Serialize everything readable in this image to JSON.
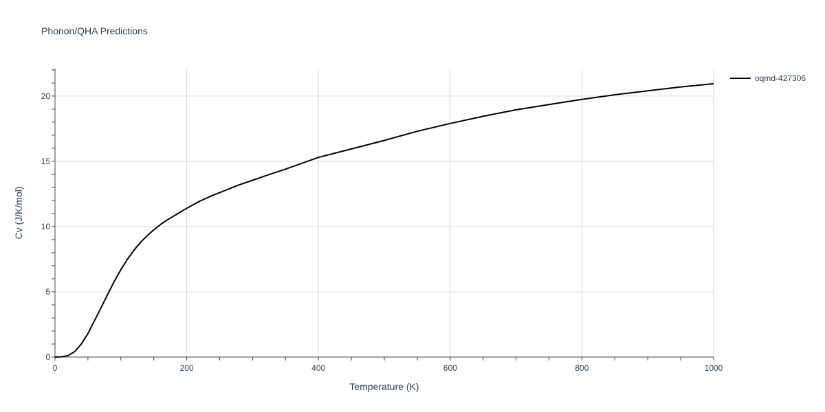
{
  "chart_data": {
    "type": "line",
    "title": "Phonon/QHA Predictions",
    "xlabel": "Temperature (K)",
    "ylabel": "Cv (J/K/mol)",
    "xlim": [
      0,
      1000
    ],
    "ylim": [
      0,
      22.1
    ],
    "x_ticks": [
      0,
      200,
      400,
      600,
      800,
      1000
    ],
    "y_ticks": [
      0,
      5,
      10,
      15,
      20
    ],
    "grid": true,
    "legend_position": "top-right",
    "series": [
      {
        "name": "oqmd-427306",
        "color": "#000000",
        "x": [
          0,
          10,
          20,
          30,
          40,
          50,
          60,
          70,
          80,
          90,
          100,
          110,
          120,
          130,
          140,
          150,
          160,
          170,
          180,
          190,
          200,
          220,
          240,
          260,
          280,
          300,
          320,
          350,
          400,
          450,
          500,
          550,
          600,
          650,
          700,
          750,
          800,
          850,
          900,
          950,
          1000
        ],
        "values": [
          0,
          0.02,
          0.12,
          0.42,
          1.0,
          1.8,
          2.8,
          3.8,
          4.8,
          5.8,
          6.7,
          7.5,
          8.2,
          8.8,
          9.3,
          9.75,
          10.15,
          10.5,
          10.8,
          11.1,
          11.4,
          11.95,
          12.4,
          12.8,
          13.2,
          13.55,
          13.9,
          14.4,
          15.3,
          15.95,
          16.6,
          17.3,
          17.9,
          18.45,
          18.95,
          19.35,
          19.75,
          20.1,
          20.4,
          20.7,
          20.95
        ]
      }
    ]
  }
}
